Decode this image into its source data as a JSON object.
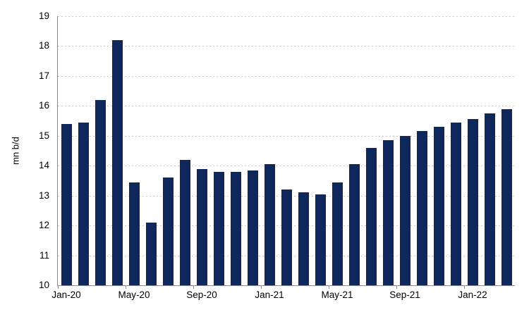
{
  "chart_data": {
    "type": "bar",
    "title": "",
    "xlabel": "",
    "ylabel": "mn b/d",
    "ylim": [
      10,
      19
    ],
    "ytick_step": 1,
    "yticks": [
      10,
      11,
      12,
      13,
      14,
      15,
      16,
      17,
      18,
      19
    ],
    "categories": [
      "Jan-20",
      "Feb-20",
      "Mar-20",
      "Apr-20",
      "May-20",
      "Jun-20",
      "Jul-20",
      "Aug-20",
      "Sep-20",
      "Oct-20",
      "Nov-20",
      "Dec-20",
      "Jan-21",
      "Feb-21",
      "Mar-21",
      "Apr-21",
      "May-21",
      "Jun-21",
      "Jul-21",
      "Aug-21",
      "Sep-21",
      "Oct-21",
      "Nov-21",
      "Dec-21",
      "Jan-22",
      "Feb-22",
      "Mar-22"
    ],
    "values": [
      15.4,
      15.45,
      16.2,
      18.2,
      13.45,
      12.1,
      13.6,
      14.2,
      13.9,
      13.8,
      13.8,
      13.85,
      14.05,
      13.2,
      13.1,
      13.05,
      13.45,
      14.05,
      14.6,
      14.85,
      15.0,
      15.15,
      15.3,
      15.45,
      15.55,
      15.75,
      15.9
    ],
    "x_tick_label_indices": [
      0,
      4,
      8,
      12,
      16,
      20,
      24
    ],
    "x_tick_labels_shown": [
      "Jan-20",
      "May-20",
      "Sep-20",
      "Jan-21",
      "May-21",
      "Sep-21",
      "Jan-22"
    ],
    "x_tick_boundary_interval": 4,
    "grid": "horizontal-dotted",
    "legend": "none",
    "bar_color": "#10275c",
    "axis_color": "#8c8c8c",
    "gridline_color": "#c9c9c9",
    "label_color": "#000000"
  }
}
